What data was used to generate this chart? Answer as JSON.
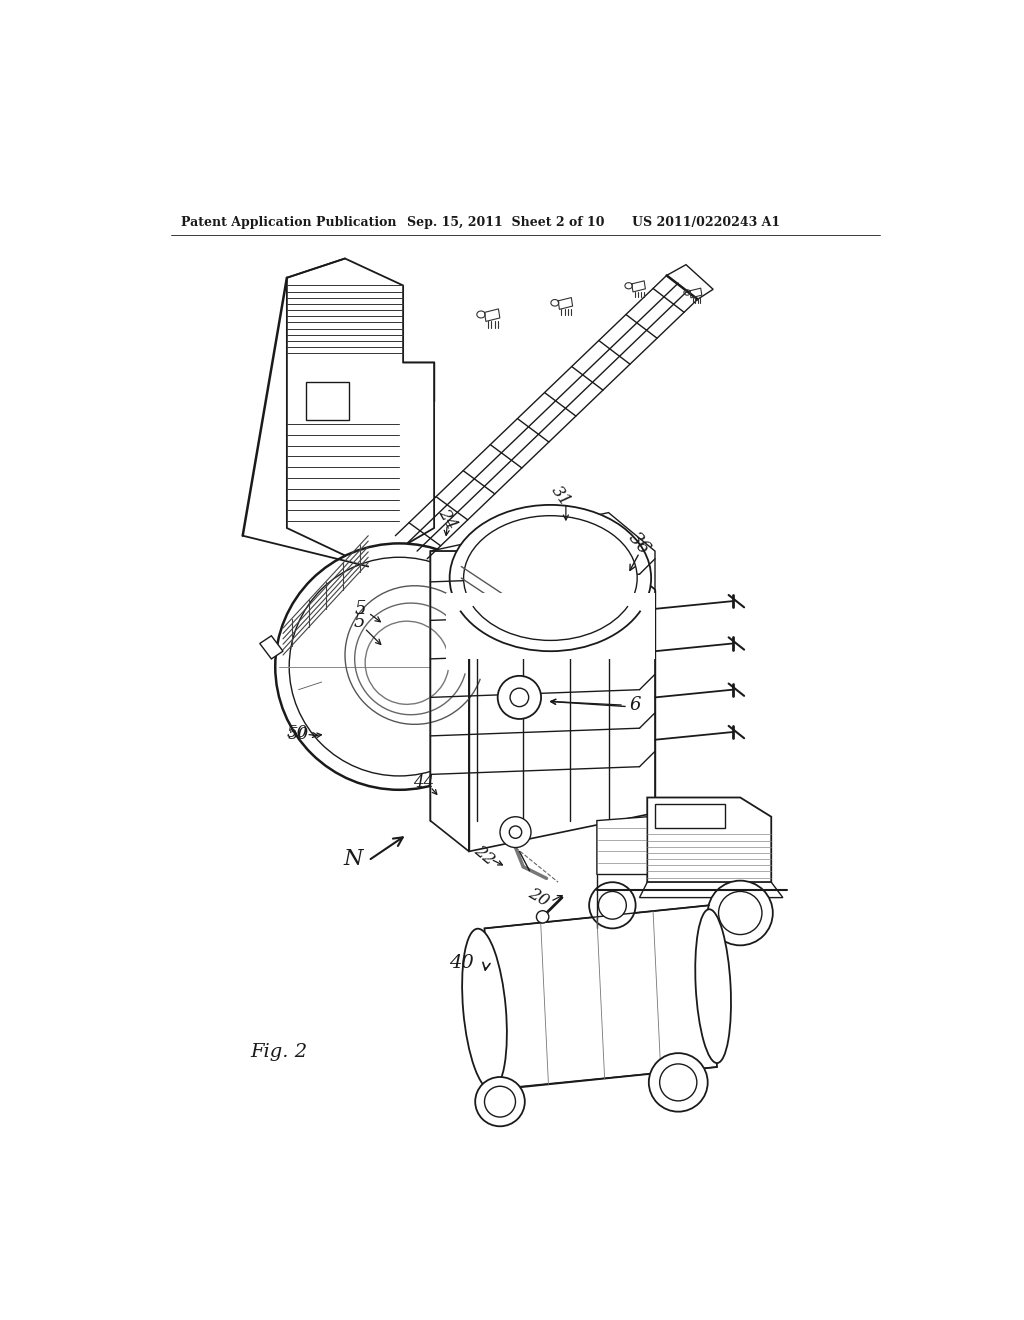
{
  "background_color": "#ffffff",
  "header_left": "Patent Application Publication",
  "header_mid": "Sep. 15, 2011  Sheet 2 of 10",
  "header_right": "US 2011/0220243 A1",
  "figure_label": "Fig. 2",
  "line_color": "#1a1a1a",
  "lw": 1.0,
  "lw_thick": 1.8,
  "lw_thin": 0.6,
  "gray_light": "#f0f0f0",
  "gray_mid": "#cccccc",
  "white": "#ffffff"
}
